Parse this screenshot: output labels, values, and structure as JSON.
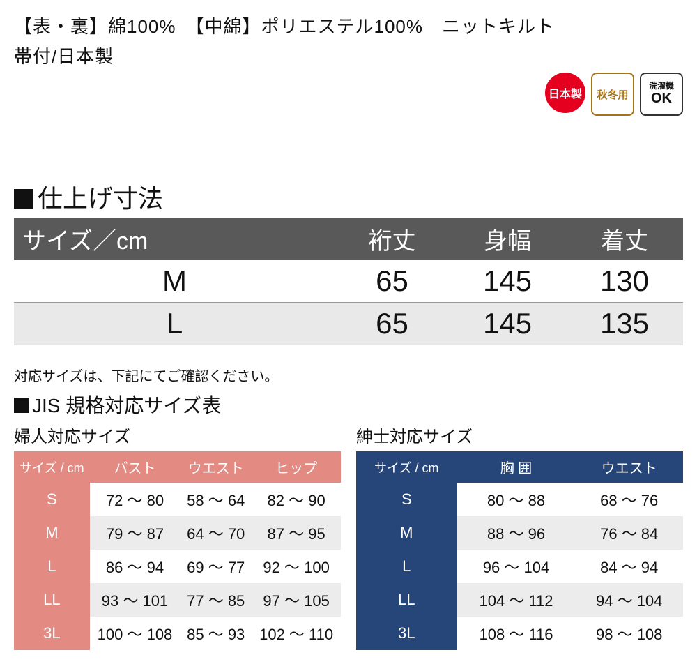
{
  "material": {
    "line1": "【表・裏】綿100%　【中綿】ポリエステル100%　ニットキルト",
    "line2": "帯付/日本製"
  },
  "badges": {
    "made_in_japan": "日本製",
    "season": "秋冬用",
    "wash_top": "洗濯機",
    "wash_bottom": "OK"
  },
  "main_section": {
    "title": "仕上げ寸法",
    "columns": [
      "サイズ／cm",
      "裄丈",
      "身幅",
      "着丈"
    ],
    "rows": [
      {
        "size": "M",
        "v": [
          "65",
          "145",
          "130"
        ],
        "alt": false
      },
      {
        "size": "L",
        "v": [
          "65",
          "145",
          "135"
        ],
        "alt": true
      }
    ]
  },
  "note": "対応サイズは、下記にてご確認ください。",
  "jis_title": "JIS 規格対応サイズ表",
  "women": {
    "title": "婦人対応サイズ",
    "header_bg": "#e38a82",
    "columns": [
      "サイズ / cm",
      "バスト",
      "ウエスト",
      "ヒップ"
    ],
    "rows": [
      {
        "size": "S",
        "v": [
          "72 〜 80",
          "58 〜 64",
          "82 〜 90"
        ]
      },
      {
        "size": "M",
        "v": [
          "79 〜 87",
          "64 〜 70",
          "87 〜 95"
        ]
      },
      {
        "size": "L",
        "v": [
          "86 〜 94",
          "69 〜 77",
          "92 〜 100"
        ]
      },
      {
        "size": "LL",
        "v": [
          "93 〜 101",
          "77 〜 85",
          "97 〜 105"
        ]
      },
      {
        "size": "3L",
        "v": [
          "100 〜 108",
          "85 〜 93",
          "102 〜 110"
        ]
      }
    ]
  },
  "men": {
    "title": "紳士対応サイズ",
    "header_bg": "#26467a",
    "columns": [
      "サイズ / cm",
      "胸  囲",
      "ウエスト"
    ],
    "rows": [
      {
        "size": "S",
        "v": [
          "80 〜 88",
          "68 〜 76"
        ]
      },
      {
        "size": "M",
        "v": [
          "88 〜 96",
          "76 〜 84"
        ]
      },
      {
        "size": "L",
        "v": [
          "96 〜 104",
          "84 〜 94"
        ]
      },
      {
        "size": "LL",
        "v": [
          "104 〜 112",
          "94 〜 104"
        ]
      },
      {
        "size": "3L",
        "v": [
          "108 〜 116",
          "98 〜 108"
        ]
      }
    ]
  },
  "colors": {
    "main_header_bg": "#595959",
    "row_alt_bg": "#e9e9e9",
    "badge_red": "#e6001f",
    "badge_brown": "#a57418"
  }
}
